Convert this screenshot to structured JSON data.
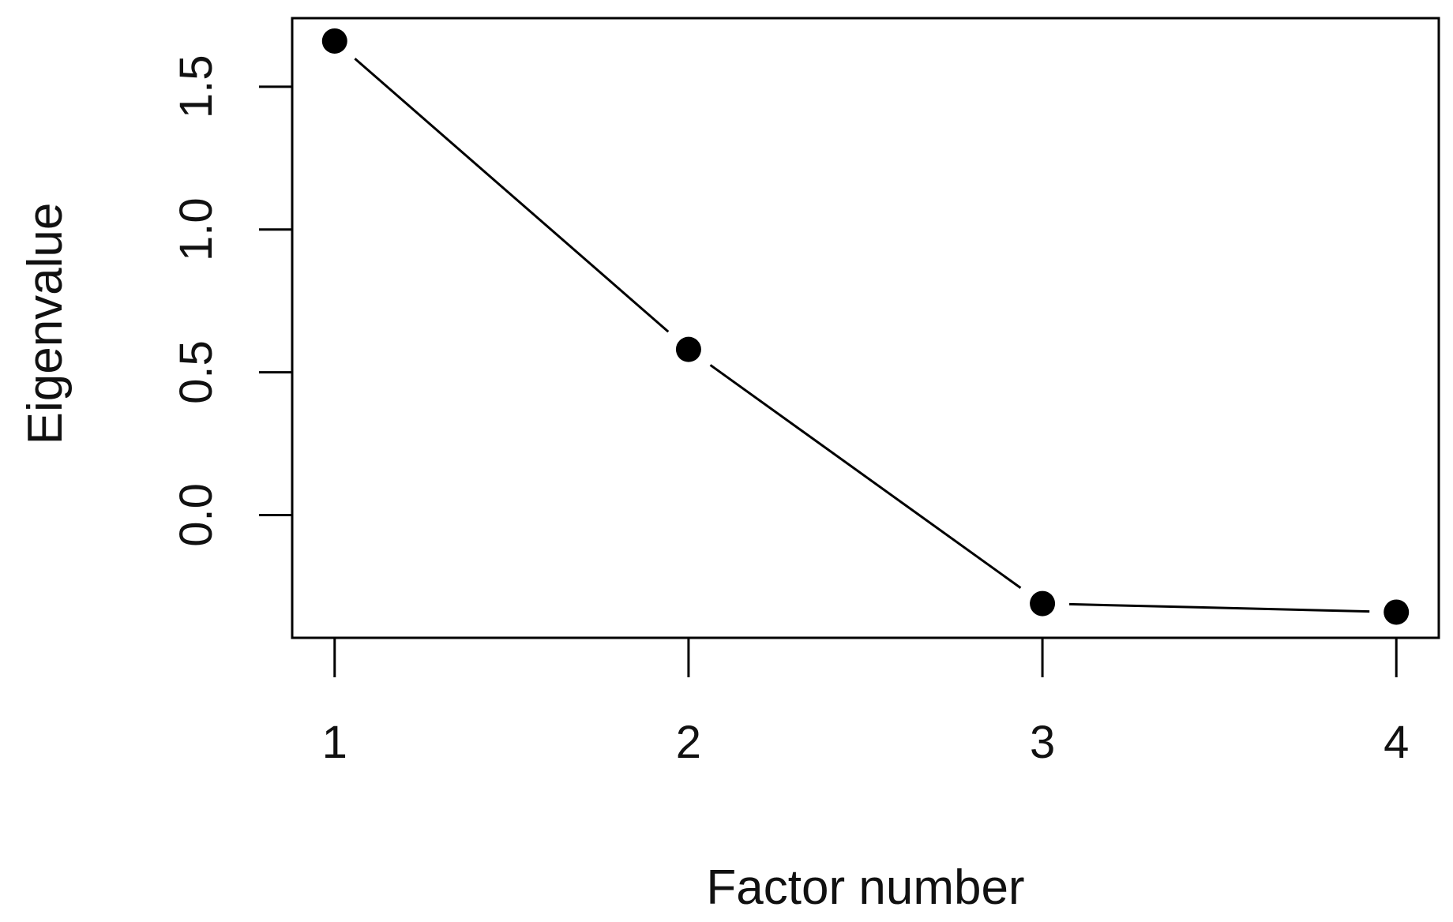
{
  "chart_data": {
    "type": "line",
    "title": "",
    "xlabel": "Factor number",
    "ylabel": "Eigenvalue",
    "x": [
      1,
      2,
      3,
      4
    ],
    "x_tick_labels": [
      "1",
      "2",
      "3",
      "4"
    ],
    "y_ticks": [
      0.0,
      0.5,
      1.0,
      1.5
    ],
    "y_tick_labels": [
      "0.0",
      "0.5",
      "1.0",
      "1.5"
    ],
    "xlim": [
      0.88,
      4.12
    ],
    "ylim": [
      -0.43,
      1.74
    ],
    "series": [
      {
        "values": [
          1.66,
          0.58,
          -0.31,
          -0.34
        ],
        "marker": "filled-circle",
        "color": "#000000"
      }
    ],
    "grid": false,
    "legend": "none"
  }
}
